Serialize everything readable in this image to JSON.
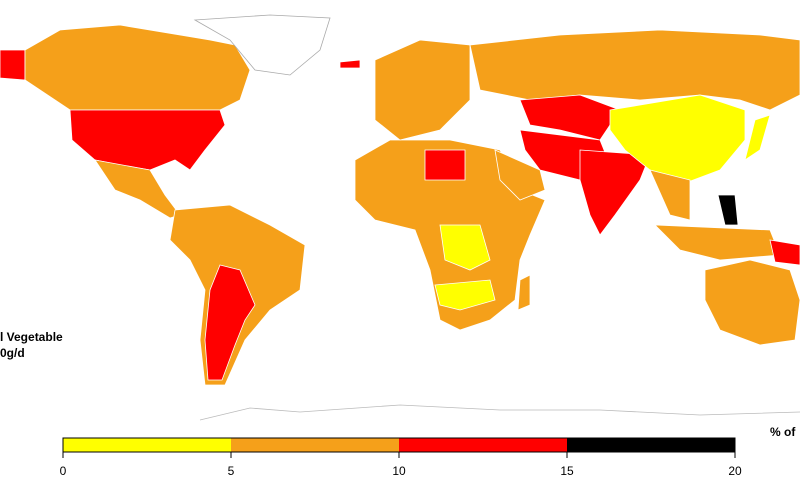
{
  "map": {
    "title_lines": [
      "l Vegetable",
      "0g/d"
    ],
    "legend": {
      "label": "% of",
      "ticks": [
        0,
        5,
        10,
        15,
        20
      ],
      "colors": [
        "#ffff00",
        "#f5a01a",
        "#ff0000",
        "#000000"
      ]
    }
  }
}
